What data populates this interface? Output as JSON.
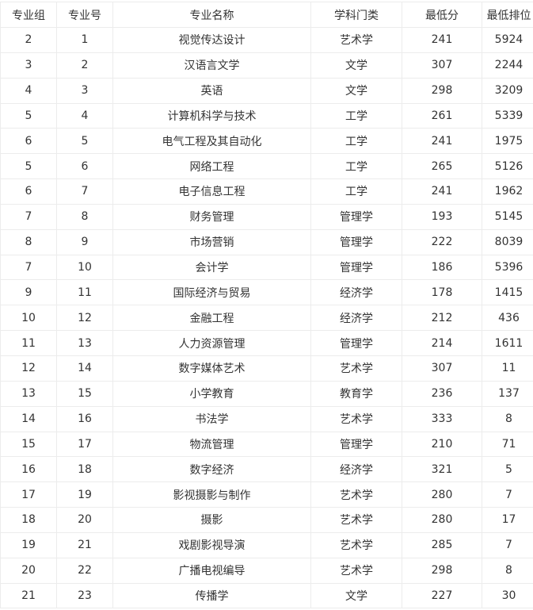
{
  "table": {
    "headers": [
      "专业组",
      "专业号",
      "专业名称",
      "学科门类",
      "最低分",
      "最低排位"
    ],
    "rows": [
      [
        "2",
        "1",
        "视觉传达设计",
        "艺术学",
        "241",
        "5924"
      ],
      [
        "3",
        "2",
        "汉语言文学",
        "文学",
        "307",
        "2244"
      ],
      [
        "4",
        "3",
        "英语",
        "文学",
        "298",
        "3209"
      ],
      [
        "5",
        "4",
        "计算机科学与技术",
        "工学",
        "261",
        "5339"
      ],
      [
        "6",
        "5",
        "电气工程及其自动化",
        "工学",
        "241",
        "1975"
      ],
      [
        "5",
        "6",
        "网络工程",
        "工学",
        "265",
        "5126"
      ],
      [
        "6",
        "7",
        "电子信息工程",
        "工学",
        "241",
        "1962"
      ],
      [
        "7",
        "8",
        "财务管理",
        "管理学",
        "193",
        "5145"
      ],
      [
        "8",
        "9",
        "市场营销",
        "管理学",
        "222",
        "8039"
      ],
      [
        "7",
        "10",
        "会计学",
        "管理学",
        "186",
        "5396"
      ],
      [
        "9",
        "11",
        "国际经济与贸易",
        "经济学",
        "178",
        "1415"
      ],
      [
        "10",
        "12",
        "金融工程",
        "经济学",
        "212",
        "436"
      ],
      [
        "11",
        "13",
        "人力资源管理",
        "管理学",
        "214",
        "1611"
      ],
      [
        "12",
        "14",
        "数字媒体艺术",
        "艺术学",
        "307",
        "11"
      ],
      [
        "13",
        "15",
        "小学教育",
        "教育学",
        "236",
        "137"
      ],
      [
        "14",
        "16",
        "书法学",
        "艺术学",
        "333",
        "8"
      ],
      [
        "15",
        "17",
        "物流管理",
        "管理学",
        "210",
        "71"
      ],
      [
        "16",
        "18",
        "数字经济",
        "经济学",
        "321",
        "5"
      ],
      [
        "17",
        "19",
        "影视摄影与制作",
        "艺术学",
        "280",
        "7"
      ],
      [
        "18",
        "20",
        "摄影",
        "艺术学",
        "280",
        "17"
      ],
      [
        "19",
        "21",
        "戏剧影视导演",
        "艺术学",
        "285",
        "7"
      ],
      [
        "20",
        "22",
        "广播电视编导",
        "艺术学",
        "298",
        "8"
      ],
      [
        "21",
        "23",
        "传播学",
        "文学",
        "227",
        "30"
      ]
    ]
  }
}
